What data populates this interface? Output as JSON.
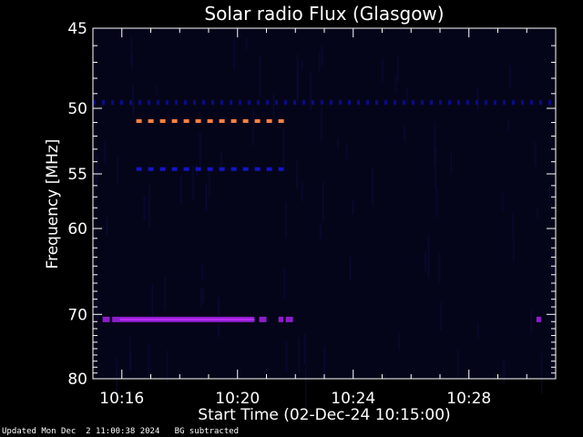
{
  "chart_data": {
    "type": "heatmap",
    "title": "Solar radio Flux (Glasgow)",
    "xlabel": "Start Time (02-Dec-24 10:15:00)",
    "ylabel": "Frequency [MHz]",
    "x_range_minutes": [
      "10:15",
      "10:31"
    ],
    "x_ticks": [
      "10:16",
      "10:20",
      "10:24",
      "10:28"
    ],
    "y_range_mhz": [
      45,
      80
    ],
    "y_ticks": [
      45,
      50,
      55,
      60,
      70,
      80
    ],
    "background_color": "#05051a",
    "features": [
      {
        "label": "band",
        "freq_mhz": 50.9,
        "start": "10:16:30",
        "end": "10:21:30",
        "color": "#ff8040",
        "style": "dashed"
      },
      {
        "label": "band",
        "freq_mhz": 54.6,
        "start": "10:16:30",
        "end": "10:21:30",
        "color": "#1414c8",
        "style": "dashed"
      },
      {
        "label": "band",
        "freq_mhz": 49.6,
        "start": "10:15:00",
        "end": "10:31:00",
        "color": "#0a0a8c",
        "style": "dotted"
      },
      {
        "label": "band",
        "freq_mhz": 70.7,
        "start": "10:15:55",
        "end": "10:20:35",
        "color": "#8c1ec8",
        "style": "solid"
      }
    ],
    "grid": false,
    "legend": "none"
  },
  "footer": {
    "updated": "Updated Mon Dec  2 11:00:38 2024",
    "note": "BG subtracted"
  }
}
